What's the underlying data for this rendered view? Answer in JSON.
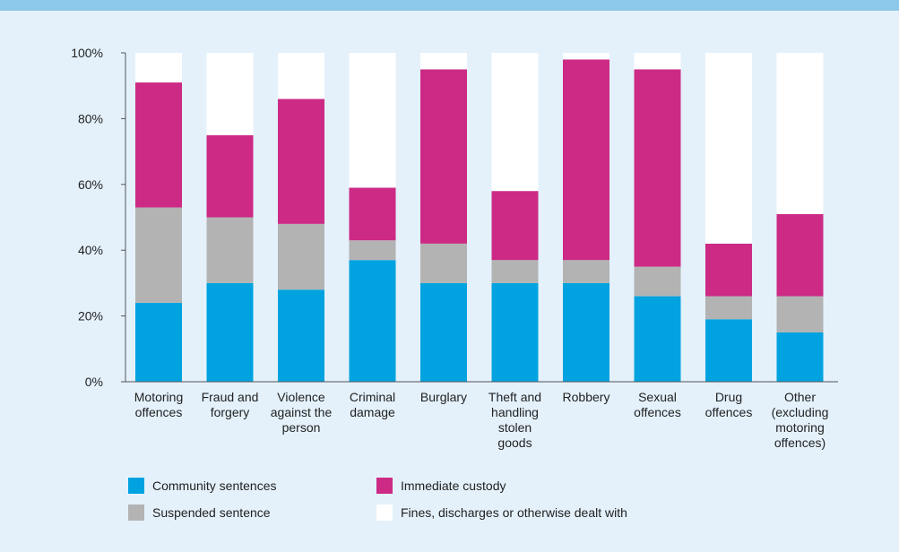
{
  "chart_data": {
    "type": "stacked_bar",
    "categories": [
      [
        "Motoring",
        "offences"
      ],
      [
        "Fraud and",
        "forgery"
      ],
      [
        "Violence",
        "against the",
        "person"
      ],
      [
        "Criminal",
        "damage"
      ],
      [
        "Burglary"
      ],
      [
        "Theft and",
        "handling",
        "stolen",
        "goods"
      ],
      [
        "Robbery"
      ],
      [
        "Sexual",
        "offences"
      ],
      [
        "Drug",
        "offences"
      ],
      [
        "Other",
        "(excluding",
        "motoring",
        "offences)"
      ]
    ],
    "series": [
      {
        "name": "Community sentences",
        "color": "#00a3e0",
        "values": [
          24,
          30,
          28,
          37,
          30,
          30,
          30,
          26,
          19,
          15
        ]
      },
      {
        "name": "Suspended sentence",
        "color": "#b3b3b3",
        "values": [
          29,
          20,
          20,
          6,
          12,
          7,
          7,
          9,
          7,
          11
        ]
      },
      {
        "name": "Immediate custody",
        "color": "#cc2a85",
        "values": [
          38,
          25,
          38,
          16,
          53,
          21,
          61,
          60,
          16,
          25
        ]
      },
      {
        "name": "Fines, discharges or otherwise dealt with",
        "color": "#ffffff",
        "values": [
          9,
          25,
          14,
          41,
          5,
          42,
          2,
          5,
          58,
          49
        ]
      }
    ],
    "ylim": [
      0,
      100
    ],
    "yticks": [
      {
        "value": 0,
        "label": "0%"
      },
      {
        "value": 20,
        "label": "20%"
      },
      {
        "value": 40,
        "label": "40%"
      },
      {
        "value": 60,
        "label": "60%"
      },
      {
        "value": 80,
        "label": "80%"
      },
      {
        "value": 100,
        "label": "100%"
      }
    ]
  }
}
